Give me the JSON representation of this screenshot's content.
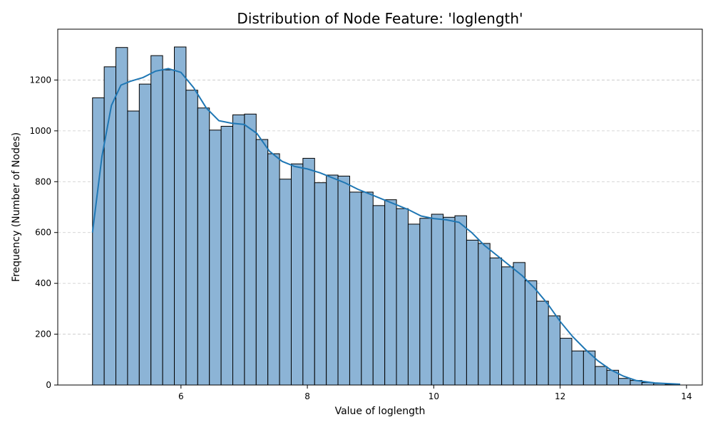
{
  "chart_data": {
    "type": "bar",
    "title": "Distribution of Node Feature: 'loglength'",
    "xlabel": "Value of loglength",
    "ylabel": "Frequency (Number of Nodes)",
    "xlim": [
      4.05,
      14.25
    ],
    "ylim": [
      0,
      1400
    ],
    "xticks": [
      6,
      8,
      10,
      12,
      14
    ],
    "yticks": [
      0,
      200,
      400,
      600,
      800,
      1000,
      1200
    ],
    "grid": {
      "y": true,
      "x": false,
      "style": "dashed"
    },
    "legend": "none",
    "bins": {
      "start": 4.6,
      "width": 0.185
    },
    "values": [
      1130,
      1252,
      1328,
      1078,
      1184,
      1296,
      1240,
      1330,
      1160,
      1090,
      1003,
      1018,
      1063,
      1066,
      966,
      910,
      810,
      870,
      892,
      796,
      826,
      822,
      759,
      759,
      706,
      729,
      694,
      633,
      656,
      672,
      660,
      666,
      570,
      557,
      500,
      465,
      482,
      410,
      330,
      272,
      184,
      134,
      134,
      73,
      58,
      26,
      18,
      10,
      6,
      3
    ],
    "kde": {
      "x": [
        4.6,
        4.75,
        4.9,
        5.05,
        5.2,
        5.4,
        5.6,
        5.8,
        6.0,
        6.2,
        6.4,
        6.6,
        6.8,
        7.0,
        7.2,
        7.4,
        7.6,
        7.8,
        8.0,
        8.2,
        8.4,
        8.6,
        8.8,
        9.0,
        9.2,
        9.4,
        9.6,
        9.8,
        10.0,
        10.2,
        10.4,
        10.6,
        10.8,
        11.0,
        11.2,
        11.4,
        11.6,
        11.8,
        12.0,
        12.2,
        12.4,
        12.6,
        12.8,
        13.0,
        13.2,
        13.5,
        13.9
      ],
      "y": [
        600,
        900,
        1100,
        1180,
        1195,
        1210,
        1235,
        1245,
        1230,
        1170,
        1090,
        1040,
        1030,
        1025,
        990,
        920,
        880,
        860,
        850,
        835,
        815,
        795,
        770,
        750,
        730,
        710,
        690,
        665,
        655,
        650,
        640,
        600,
        550,
        510,
        470,
        430,
        380,
        320,
        250,
        190,
        140,
        95,
        60,
        35,
        18,
        8,
        3
      ]
    },
    "colors": {
      "bar_fill": "#8cb4d6",
      "bar_edge": "#000000",
      "kde_line": "#1f77b4",
      "grid": "#c8c8c8"
    }
  }
}
